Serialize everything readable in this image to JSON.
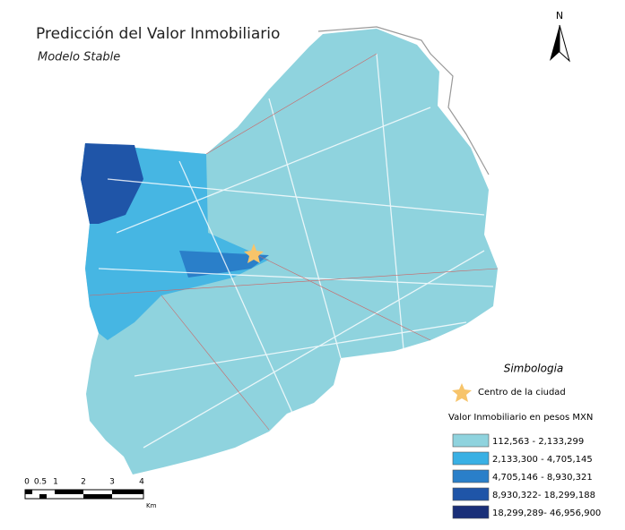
{
  "header": {
    "title": "Predicción del Valor Inmobiliario",
    "subtitle": "Modelo Stable"
  },
  "north": "N",
  "legend": {
    "title": "Simbologia",
    "center": "Centro de la ciudad",
    "value_title": "Valor Inmobiliario en pesos MXN",
    "classes": [
      {
        "label": "112,563 - 2,133,299",
        "color": "#8fd3de"
      },
      {
        "label": "2,133,300 - 4,705,145",
        "color": "#39b0e4"
      },
      {
        "label": "4,705,146 - 8,930,321",
        "color": "#2a7fc9"
      },
      {
        "label": "8,930,322- 18,299,188",
        "color": "#1f55a8"
      },
      {
        "label": "18,299,289- 46,956,900",
        "color": "#1a2f78"
      }
    ]
  },
  "scale_bar": {
    "labels": [
      "0",
      "0.5",
      "1",
      "2",
      "3",
      "4"
    ],
    "unit": "Km"
  }
}
